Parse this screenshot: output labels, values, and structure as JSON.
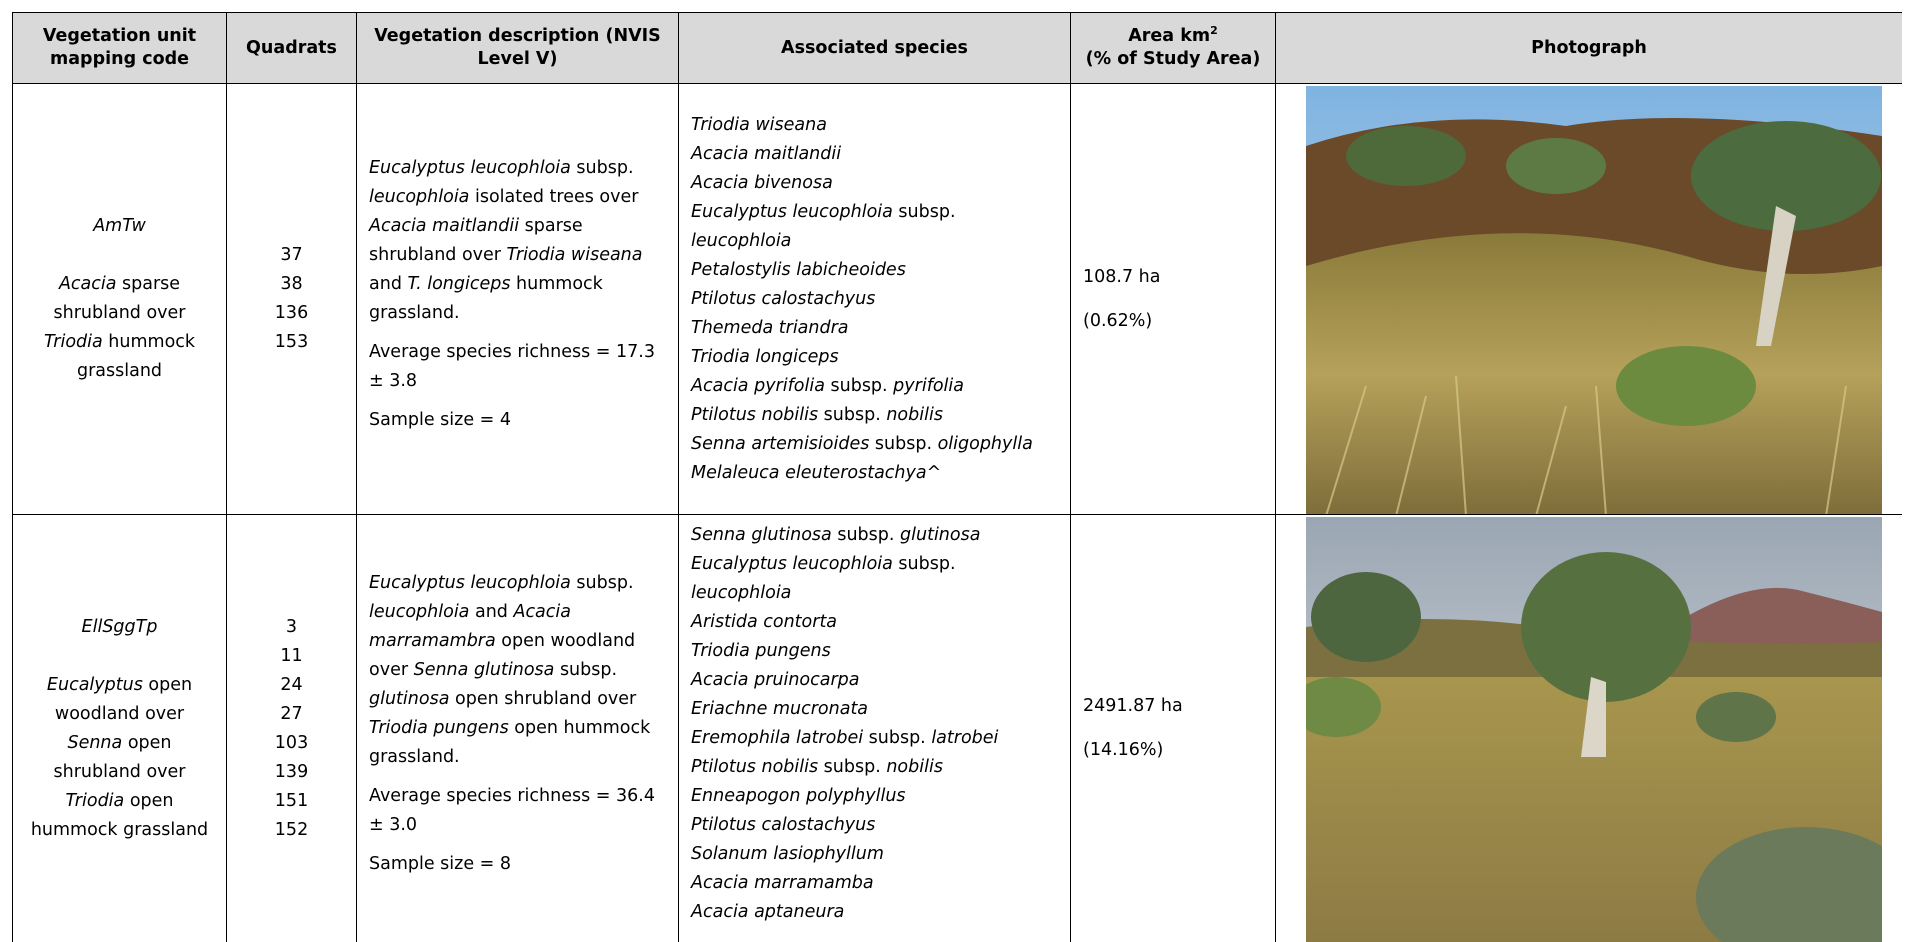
{
  "table": {
    "header": [
      "Vegetation unit mapping code",
      "Quadrats",
      "Vegetation description (NVIS Level V)",
      "Associated species",
      {
        "text": "Area km",
        "sup": "2",
        "line2": "(% of Study Area)"
      },
      "Photograph"
    ],
    "rows": [
      {
        "code": "AmTw",
        "name": [
          {
            "italic": "Acacia"
          },
          " sparse shrubland over ",
          {
            "italic": "Triodia"
          },
          " hummock grassland"
        ],
        "quadrats": [
          37,
          38,
          136,
          153
        ],
        "description": [
          [
            {
              "italic": "Eucalyptus leucophloia"
            },
            " subsp. ",
            {
              "italic": "leucophloia"
            },
            " isolated trees over ",
            {
              "italic": "Acacia maitlandii"
            },
            " sparse shrubland over ",
            {
              "italic": "Triodia wiseana"
            },
            " and ",
            {
              "italic": "T. longiceps"
            },
            " hummock grassland."
          ],
          [
            "Average species richness = 17.3 ± 3.8"
          ],
          [
            "Sample size = 4"
          ]
        ],
        "species": [
          [
            {
              "italic": "Triodia wiseana"
            }
          ],
          [
            {
              "italic": "Acacia maitlandii"
            }
          ],
          [
            {
              "italic": "Acacia bivenosa"
            }
          ],
          [
            {
              "italic": "Eucalyptus leucophloia"
            },
            " subsp. ",
            {
              "italic": "leucophloia"
            }
          ],
          [
            {
              "italic": "Petalostylis labicheoides"
            }
          ],
          [
            {
              "italic": "Ptilotus calostachyus"
            }
          ],
          [
            {
              "italic": "Themeda triandra"
            }
          ],
          [
            {
              "italic": "Triodia longiceps"
            }
          ],
          [
            {
              "italic": "Acacia pyrifolia"
            },
            " subsp. ",
            {
              "italic": "pyrifolia"
            }
          ],
          [
            {
              "italic": "Ptilotus nobilis"
            },
            " subsp. ",
            {
              "italic": "nobilis"
            }
          ],
          [
            {
              "italic": "Senna artemisioides"
            },
            " subsp. ",
            {
              "italic": "oligophylla"
            }
          ],
          [
            {
              "italic": "Melaleuca eleuterostachya^"
            }
          ]
        ],
        "area": "108.7 ha",
        "percent": "(0.62%)"
      },
      {
        "code": "EllSggTp",
        "name": [
          {
            "italic": "Eucalyptus"
          },
          " open woodland over ",
          {
            "italic": "Senna"
          },
          " open shrubland over ",
          {
            "italic": "Triodia"
          },
          " open hummock grassland"
        ],
        "quadrats": [
          3,
          11,
          24,
          27,
          103,
          139,
          151,
          152
        ],
        "description": [
          [
            {
              "italic": "Eucalyptus leucophloia"
            },
            " subsp. ",
            {
              "italic": "leucophloia"
            },
            " and ",
            {
              "italic": "Acacia marramambra"
            },
            " open woodland over ",
            {
              "italic": "Senna glutinosa"
            },
            " subsp. ",
            {
              "italic": "glutinosa"
            },
            " open shrubland over ",
            {
              "italic": "Triodia pungens"
            },
            " open hummock grassland."
          ],
          [
            "Average species richness = 36.4 ± 3.0"
          ],
          [
            "Sample size = 8"
          ]
        ],
        "species": [
          [
            {
              "italic": "Senna glutinosa"
            },
            " subsp. ",
            {
              "italic": "glutinosa"
            }
          ],
          [
            {
              "italic": "Eucalyptus leucophloia"
            },
            " subsp. ",
            {
              "italic": "leucophloia"
            }
          ],
          [
            {
              "italic": "Aristida contorta"
            }
          ],
          [
            {
              "italic": "Triodia pungens"
            }
          ],
          [
            {
              "italic": "Acacia pruinocarpa"
            }
          ],
          [
            {
              "italic": "Eriachne mucronata"
            }
          ],
          [
            {
              "italic": "Eremophila latrobei"
            },
            " subsp. ",
            {
              "italic": "latrobei"
            }
          ],
          [
            {
              "italic": "Ptilotus nobilis"
            },
            " subsp. ",
            {
              "italic": "nobilis"
            }
          ],
          [
            {
              "italic": "Enneapogon polyphyllus"
            }
          ],
          [
            {
              "italic": "Ptilotus calostachyus"
            }
          ],
          [
            {
              "italic": "Solanum lasiophyllum"
            }
          ],
          [
            {
              "italic": "Acacia marramamba"
            }
          ],
          [
            {
              "italic": "Acacia aptaneura"
            }
          ]
        ],
        "area": "2491.87 ha",
        "percent": "(14.16%)"
      }
    ]
  }
}
